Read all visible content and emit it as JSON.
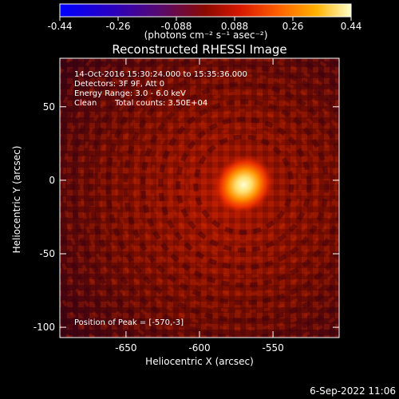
{
  "chart_data": {
    "type": "heatmap",
    "title": "Reconstructed RHESSI Image",
    "xlabel": "Heliocentric X (arcsec)",
    "ylabel": "Heliocentric Y (arcsec)",
    "xlim": [
      -695,
      -505
    ],
    "ylim": [
      -107,
      83
    ],
    "x_ticks": [
      -650,
      -600,
      -550
    ],
    "y_ticks": [
      -100,
      -50,
      0,
      50
    ],
    "peak_position": [
      -570,
      -3
    ],
    "annotations": [
      "14-Oct-2016 15:30:24.000 to 15:35:36.000",
      "Detectors: 3F 9F, Att 0",
      "Energy Range: 3.0 - 6.0 keV",
      "Clean",
      "Total counts: 3.50E+04",
      "Position of Peak = [-570,-3]"
    ],
    "colorbar": {
      "range": [
        -0.44,
        0.44
      ],
      "ticks": [
        "-0.44",
        "-0.26",
        "-0.088",
        "0.088",
        "0.26",
        "0.44"
      ],
      "label": "(photons cm⁻² s⁻¹ asec⁻²)"
    },
    "footer_date": "6-Sep-2022 11:06",
    "colormap": [
      "#0000ff",
      "#2a00c0",
      "#5a0a6a",
      "#8a0a00",
      "#d81800",
      "#ff6000",
      "#ffb000",
      "#ffffc8"
    ]
  }
}
